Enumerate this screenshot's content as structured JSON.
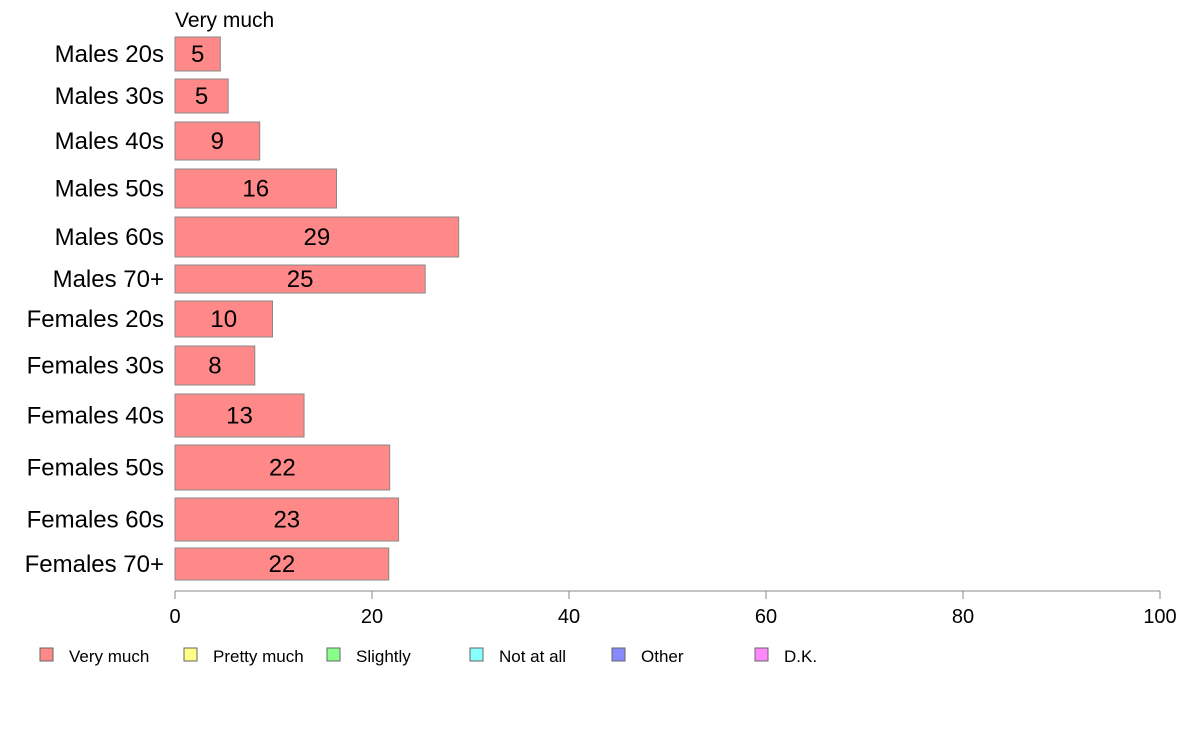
{
  "chart_data": {
    "type": "bar",
    "orientation": "horizontal",
    "stacked": true,
    "series_title": "Very much",
    "categories": [
      "Males 20s",
      "Males 30s",
      "Males 40s",
      "Males 50s",
      "Males 60s",
      "Males 70+",
      "Females 20s",
      "Females 30s",
      "Females 40s",
      "Females 50s",
      "Females 60s",
      "Females 70+"
    ],
    "series": [
      {
        "name": "Very much",
        "color": "#ff8888",
        "values": [
          4.6,
          5.4,
          8.6,
          16.4,
          28.8,
          25.4,
          9.9,
          8.1,
          13.1,
          21.8,
          22.7,
          21.7
        ],
        "labels": [
          "5",
          "5",
          "9",
          "16",
          "29",
          "25",
          "10",
          "8",
          "13",
          "22",
          "23",
          "22"
        ]
      }
    ],
    "xlim": [
      0,
      100
    ],
    "xticks": [
      "0",
      "20",
      "40",
      "60",
      "80",
      "100"
    ],
    "grid": false,
    "legend": {
      "position": "bottom",
      "items": [
        {
          "label": "Very much",
          "color": "#ff8888"
        },
        {
          "label": "Pretty much",
          "color": "#ffff88"
        },
        {
          "label": "Slightly",
          "color": "#88ff88"
        },
        {
          "label": "Not at all",
          "color": "#88ffff"
        },
        {
          "label": "Other",
          "color": "#8888ff"
        },
        {
          "label": "D.K.",
          "color": "#ff88ff"
        }
      ]
    }
  }
}
